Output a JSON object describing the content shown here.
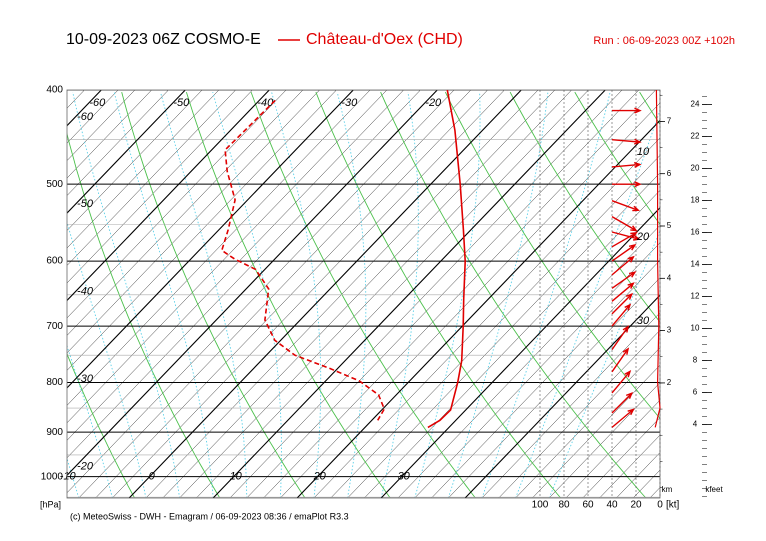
{
  "chart_data": {
    "type": "emagram",
    "title": "10-09-2023 06Z COSMO-E",
    "legend": "Château-d'Oex (CHD)",
    "run": "Run : 06-09-2023 00Z +102h",
    "credit": "(c) MeteoSwiss - DWH - Emagram / 06-09-2023 08:36 / emaPlot R3.3",
    "ylabel": "[hPa]",
    "log_y": true,
    "ylim": [
      1052,
      400
    ],
    "yticks": [
      400,
      500,
      600,
      700,
      800,
      900,
      1000
    ],
    "xlim": [
      -17.4,
      53.2
    ],
    "isotherms": [
      -60,
      -50,
      -40,
      -30,
      -20,
      -10,
      0,
      10,
      20,
      30
    ],
    "series": [
      {
        "color": "#e00000",
        "style": "solid",
        "pressure": [
          400,
          440,
          500,
          557,
          600,
          657,
          700,
          760,
          800,
          854,
          875,
          890
        ],
        "values": [
          -18.8,
          -13.3,
          -6.5,
          -0.9,
          2.9,
          7.1,
          10.1,
          13.9,
          15.9,
          18.2,
          18.1,
          17.5
        ]
      },
      {
        "color": "#e00000",
        "style": "dashed",
        "pressure": [
          410,
          424,
          445,
          461,
          485,
          519,
          557,
          585,
          597,
          612,
          641,
          690,
          724,
          750,
          774,
          797,
          824,
          852,
          875
        ],
        "values": [
          -38.1,
          -38.2,
          -38.3,
          -38.4,
          -35.7,
          -31.5,
          -28.9,
          -27.3,
          -24.8,
          -21.1,
          -17.3,
          -14.2,
          -10.7,
          -6.6,
          -0.9,
          4.0,
          7.9,
          10.2,
          10.7
        ]
      }
    ],
    "wind": {
      "color": "#e00000",
      "pressure": [
        420,
        450,
        480,
        500,
        520,
        540,
        560,
        580,
        600,
        620,
        640,
        660,
        680,
        700,
        740,
        780,
        820,
        860,
        890
      ],
      "direction": [
        270,
        275,
        265,
        270,
        290,
        300,
        285,
        240,
        235,
        230,
        235,
        230,
        225,
        220,
        215,
        215,
        220,
        225,
        230
      ]
    },
    "wind_speed": {
      "color": "#e00000",
      "label": "[kt]",
      "pressure": [
        400,
        500,
        600,
        700,
        800,
        850,
        890
      ],
      "values": [
        3,
        2,
        2,
        1,
        2,
        0,
        4
      ],
      "xlim": [
        100,
        0
      ],
      "xticks": [
        100,
        80,
        60,
        40,
        20,
        0
      ]
    },
    "annotations": [
      "10",
      "20",
      "30"
    ],
    "km_axis": {
      "label": "km",
      "lim": [
        -0.2,
        7.6
      ],
      "ticks": [
        2,
        3,
        4,
        5,
        6,
        7
      ]
    },
    "kfeet_axis": {
      "label": "kfeet",
      "lim": [
        -0.6,
        24.9
      ],
      "ticks": [
        4,
        6,
        8,
        10,
        12,
        14,
        16,
        18,
        20,
        22,
        24
      ]
    }
  }
}
